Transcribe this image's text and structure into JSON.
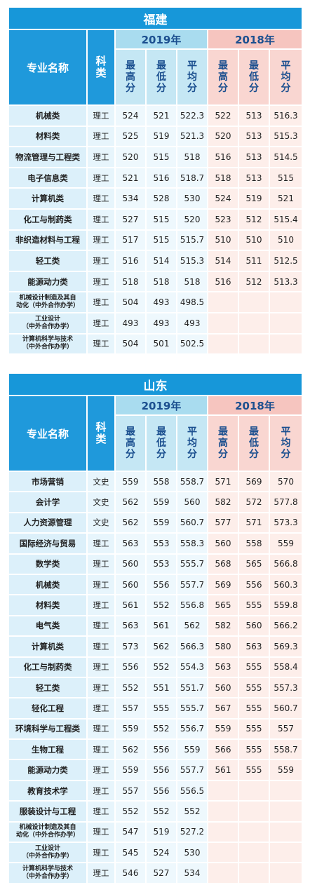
{
  "tables": [
    {
      "region": "福建",
      "headers": {
        "major": "专业名称",
        "category": "科\n类",
        "year_a": "2019年",
        "year_b": "2018年",
        "cols": [
          "最\n高\n分",
          "最\n低\n分",
          "平\n均\n分"
        ]
      },
      "rows": [
        {
          "name": "机械类",
          "kind": "理工",
          "v": [
            "524",
            "521",
            "522.3",
            "522",
            "513",
            "516.3"
          ]
        },
        {
          "name": "材料类",
          "kind": "理工",
          "v": [
            "525",
            "519",
            "521.3",
            "520",
            "513",
            "515.3"
          ]
        },
        {
          "name": "物流管理与工程类",
          "kind": "理工",
          "v": [
            "520",
            "515",
            "518",
            "516",
            "513",
            "514.5"
          ]
        },
        {
          "name": "电子信息类",
          "kind": "理工",
          "v": [
            "521",
            "516",
            "518.7",
            "518",
            "513",
            "515"
          ]
        },
        {
          "name": "计算机类",
          "kind": "理工",
          "v": [
            "534",
            "528",
            "530",
            "524",
            "519",
            "521"
          ]
        },
        {
          "name": "化工与制药类",
          "kind": "理工",
          "v": [
            "527",
            "515",
            "520",
            "523",
            "512",
            "515.4"
          ]
        },
        {
          "name": "非织造材料与工程",
          "kind": "理工",
          "v": [
            "517",
            "515",
            "515.7",
            "510",
            "510",
            "510"
          ]
        },
        {
          "name": "轻工类",
          "kind": "理工",
          "v": [
            "516",
            "514",
            "515.3",
            "514",
            "511",
            "512.5"
          ]
        },
        {
          "name": "能源动力类",
          "kind": "理工",
          "v": [
            "518",
            "518",
            "518",
            "516",
            "512",
            "513.3"
          ]
        },
        {
          "name": "机械设计制造及其自\n动化（中外合作办学）",
          "kind": "理工",
          "v": [
            "504",
            "493",
            "498.5",
            "",
            "",
            ""
          ],
          "small": true
        },
        {
          "name": "工业设计\n（中外合作办学）",
          "kind": "理工",
          "v": [
            "493",
            "493",
            "493",
            "",
            "",
            ""
          ],
          "small": true
        },
        {
          "name": "计算机科学与技术\n（中外合作办学）",
          "kind": "理工",
          "v": [
            "504",
            "501",
            "502.5",
            "",
            "",
            ""
          ],
          "small": true
        }
      ]
    },
    {
      "region": "山东",
      "headers": {
        "major": "专业名称",
        "category": "科\n类",
        "year_a": "2019年",
        "year_b": "2018年",
        "cols": [
          "最\n高\n分",
          "最\n低\n分",
          "平\n均\n分"
        ]
      },
      "rows": [
        {
          "name": "市场营销",
          "kind": "文史",
          "v": [
            "559",
            "558",
            "558.7",
            "571",
            "569",
            "570"
          ]
        },
        {
          "name": "会计学",
          "kind": "文史",
          "v": [
            "562",
            "559",
            "560",
            "582",
            "572",
            "577.8"
          ]
        },
        {
          "name": "人力资源管理",
          "kind": "文史",
          "v": [
            "562",
            "559",
            "560.7",
            "577",
            "571",
            "573.3"
          ]
        },
        {
          "name": "国际经济与贸易",
          "kind": "理工",
          "v": [
            "563",
            "553",
            "558.3",
            "560",
            "558",
            "559"
          ]
        },
        {
          "name": "数学类",
          "kind": "理工",
          "v": [
            "560",
            "553",
            "555.7",
            "568",
            "565",
            "566.8"
          ]
        },
        {
          "name": "机械类",
          "kind": "理工",
          "v": [
            "560",
            "556",
            "557.7",
            "569",
            "556",
            "560.3"
          ]
        },
        {
          "name": "材料类",
          "kind": "理工",
          "v": [
            "561",
            "552",
            "556.8",
            "565",
            "555",
            "559.8"
          ]
        },
        {
          "name": "电气类",
          "kind": "理工",
          "v": [
            "563",
            "561",
            "562",
            "582",
            "560",
            "566.2"
          ]
        },
        {
          "name": "计算机类",
          "kind": "理工",
          "v": [
            "573",
            "562",
            "566.3",
            "580",
            "563",
            "569.3"
          ]
        },
        {
          "name": "化工与制药类",
          "kind": "理工",
          "v": [
            "556",
            "552",
            "554.3",
            "563",
            "555",
            "558.4"
          ]
        },
        {
          "name": "轻工类",
          "kind": "理工",
          "v": [
            "552",
            "551",
            "551.7",
            "560",
            "555",
            "557.3"
          ]
        },
        {
          "name": "轻化工程",
          "kind": "理工",
          "v": [
            "557",
            "555",
            "555.7",
            "567",
            "555",
            "560.7"
          ]
        },
        {
          "name": "环境科学与工程类",
          "kind": "理工",
          "v": [
            "559",
            "552",
            "556.7",
            "559",
            "555",
            "557"
          ]
        },
        {
          "name": "生物工程",
          "kind": "理工",
          "v": [
            "562",
            "556",
            "559",
            "566",
            "555",
            "558.7"
          ]
        },
        {
          "name": "能源动力类",
          "kind": "理工",
          "v": [
            "559",
            "556",
            "557.7",
            "561",
            "555",
            "559"
          ]
        },
        {
          "name": "教育技术学",
          "kind": "理工",
          "v": [
            "557",
            "556",
            "556.5",
            "",
            "",
            ""
          ]
        },
        {
          "name": "服装设计与工程",
          "kind": "理工",
          "v": [
            "552",
            "552",
            "552",
            "",
            "",
            ""
          ]
        },
        {
          "name": "机械设计制造及其自\n动化（中外合作办学）",
          "kind": "理工",
          "v": [
            "547",
            "519",
            "527.2",
            "",
            "",
            ""
          ],
          "small": true
        },
        {
          "name": "工业设计\n（中外合作办学）",
          "kind": "理工",
          "v": [
            "545",
            "524",
            "530",
            "",
            "",
            ""
          ],
          "small": true
        },
        {
          "name": "计算机科学与技术\n（中外合作办学）",
          "kind": "理工",
          "v": [
            "546",
            "527",
            "534",
            "",
            "",
            ""
          ],
          "small": true
        }
      ]
    }
  ]
}
